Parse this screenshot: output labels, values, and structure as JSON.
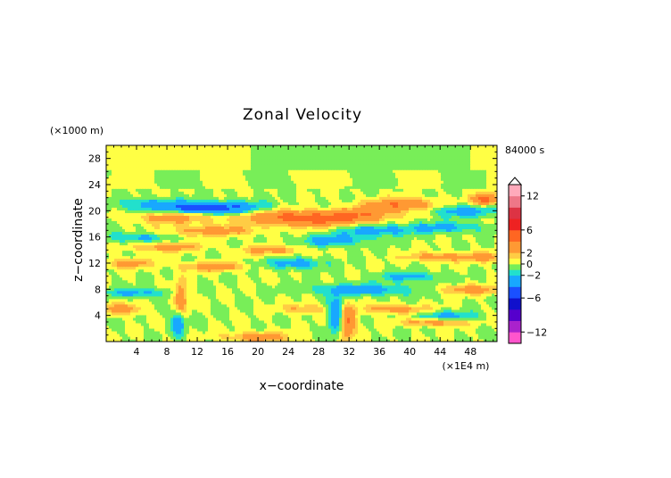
{
  "chart_data": {
    "type": "heatmap",
    "title": "Zonal Velocity",
    "xlabel": "x−coordinate",
    "ylabel": "z−coordinate",
    "x_unit": "(×1E4 m)",
    "y_unit": "(×1000 m)",
    "time_label": "84000 s",
    "xlim": [
      0,
      51.5
    ],
    "ylim": [
      0,
      30
    ],
    "x_ticks": [
      "4",
      "8",
      "12",
      "16",
      "20",
      "24",
      "28",
      "32",
      "36",
      "40",
      "44",
      "48"
    ],
    "x_tick_values": [
      4,
      8,
      12,
      16,
      20,
      24,
      28,
      32,
      36,
      40,
      44,
      48
    ],
    "y_ticks": [
      "4",
      "8",
      "12",
      "16",
      "20",
      "24",
      "28"
    ],
    "y_tick_values": [
      4,
      8,
      12,
      16,
      20,
      24,
      28
    ],
    "colorbar": {
      "range": [
        -14,
        14
      ],
      "tick_labels": [
        "12",
        "6",
        "2",
        "0",
        "−2",
        "−6",
        "−12"
      ],
      "tick_values": [
        12,
        6,
        2,
        0,
        -2,
        -6,
        -12
      ],
      "colors": [
        {
          "min": -14,
          "max": -12,
          "color": "#ff55cc"
        },
        {
          "min": -12,
          "max": -10,
          "color": "#aa22cc"
        },
        {
          "min": -10,
          "max": -8,
          "color": "#5500cc"
        },
        {
          "min": -8,
          "max": -6,
          "color": "#1010cc"
        },
        {
          "min": -6,
          "max": -4,
          "color": "#1a50ff"
        },
        {
          "min": -4,
          "max": -2,
          "color": "#18a8ff"
        },
        {
          "min": -2,
          "max": -1,
          "color": "#22e0cc"
        },
        {
          "min": -1,
          "max": 0,
          "color": "#78ee58"
        },
        {
          "min": 0,
          "max": 1,
          "color": "#ffff44"
        },
        {
          "min": 1,
          "max": 2,
          "color": "#ffcc44"
        },
        {
          "min": 2,
          "max": 4,
          "color": "#ff9933"
        },
        {
          "min": 4,
          "max": 6,
          "color": "#ff6622"
        },
        {
          "min": 6,
          "max": 8,
          "color": "#ee2222"
        },
        {
          "min": 8,
          "max": 10,
          "color": "#dd3344"
        },
        {
          "min": 10,
          "max": 12,
          "color": "#ee7788"
        },
        {
          "min": 12,
          "max": 14,
          "color": "#ffaabb"
        }
      ]
    },
    "field_features": [
      {
        "x": 16,
        "z": 20.5,
        "sx": 4.0,
        "sz": 0.7,
        "v": -4
      },
      {
        "x": 6,
        "z": 21,
        "sx": 3,
        "sz": 0.6,
        "v": -3
      },
      {
        "x": 12,
        "z": 20.5,
        "sx": 2.5,
        "sz": 0.6,
        "v": -3
      },
      {
        "x": 9,
        "z": 19,
        "sx": 3.5,
        "sz": 0.6,
        "v": 3
      },
      {
        "x": 22,
        "z": 19.2,
        "sx": 4,
        "sz": 0.8,
        "v": 3
      },
      {
        "x": 28,
        "z": 18.8,
        "sx": 4,
        "sz": 0.8,
        "v": 4
      },
      {
        "x": 34,
        "z": 19.5,
        "sx": 3,
        "sz": 0.8,
        "v": 3
      },
      {
        "x": 39,
        "z": 21,
        "sx": 3,
        "sz": 0.7,
        "v": 4
      },
      {
        "x": 47,
        "z": 20,
        "sx": 3,
        "sz": 0.6,
        "v": -3
      },
      {
        "x": 50,
        "z": 21.8,
        "sx": 1.2,
        "sz": 0.6,
        "v": 5
      },
      {
        "x": 35,
        "z": 17,
        "sx": 3,
        "sz": 0.6,
        "v": -3
      },
      {
        "x": 44,
        "z": 17.5,
        "sx": 4,
        "sz": 0.6,
        "v": -2.5
      },
      {
        "x": 14,
        "z": 17,
        "sx": 4,
        "sz": 0.6,
        "v": 3
      },
      {
        "x": 30,
        "z": 15.5,
        "sx": 3,
        "sz": 0.6,
        "v": -3
      },
      {
        "x": 4,
        "z": 16,
        "sx": 3,
        "sz": 0.5,
        "v": -2.5
      },
      {
        "x": 8,
        "z": 14.5,
        "sx": 3,
        "sz": 0.5,
        "v": 3
      },
      {
        "x": 25,
        "z": 12,
        "sx": 2.5,
        "sz": 0.6,
        "v": -3
      },
      {
        "x": 44,
        "z": 13,
        "sx": 3,
        "sz": 0.5,
        "v": 3
      },
      {
        "x": 40,
        "z": 10,
        "sx": 3,
        "sz": 0.5,
        "v": -2.5
      },
      {
        "x": 14,
        "z": 11.5,
        "sx": 3,
        "sz": 0.5,
        "v": 3
      },
      {
        "x": 3,
        "z": 12,
        "sx": 2,
        "sz": 0.5,
        "v": 3
      },
      {
        "x": 22,
        "z": 14,
        "sx": 3,
        "sz": 0.5,
        "v": 2.5
      },
      {
        "x": 34,
        "z": 8,
        "sx": 5,
        "sz": 0.6,
        "v": -3
      },
      {
        "x": 48,
        "z": 8,
        "sx": 3,
        "sz": 0.5,
        "v": 3
      },
      {
        "x": 9.8,
        "z": 6,
        "sx": 0.6,
        "sz": 2.0,
        "v": 5
      },
      {
        "x": 9.6,
        "z": 3.5,
        "sx": 0.6,
        "sz": 1.6,
        "v": -5
      },
      {
        "x": 30.4,
        "z": 4,
        "sx": 0.7,
        "sz": 2.0,
        "v": -5
      },
      {
        "x": 31.6,
        "z": 3,
        "sx": 0.8,
        "sz": 1.8,
        "v": 5
      },
      {
        "x": 2,
        "z": 5,
        "sx": 2,
        "sz": 0.6,
        "v": 3
      },
      {
        "x": 4,
        "z": 7.5,
        "sx": 3,
        "sz": 0.5,
        "v": -2.5
      },
      {
        "x": 20,
        "z": 0.7,
        "sx": 3,
        "sz": 0.6,
        "v": 3
      },
      {
        "x": 38,
        "z": 5,
        "sx": 3,
        "sz": 0.5,
        "v": 3
      },
      {
        "x": 45,
        "z": 4,
        "sx": 3,
        "sz": 0.5,
        "v": -2.5
      },
      {
        "x": 43,
        "z": 3,
        "sx": 3,
        "sz": 0.4,
        "v": 3
      },
      {
        "x": 26,
        "z": 5,
        "sx": 2,
        "sz": 0.5,
        "v": 2.5
      },
      {
        "x": 50,
        "z": 13,
        "sx": 1.5,
        "sz": 0.5,
        "v": 3
      }
    ]
  }
}
